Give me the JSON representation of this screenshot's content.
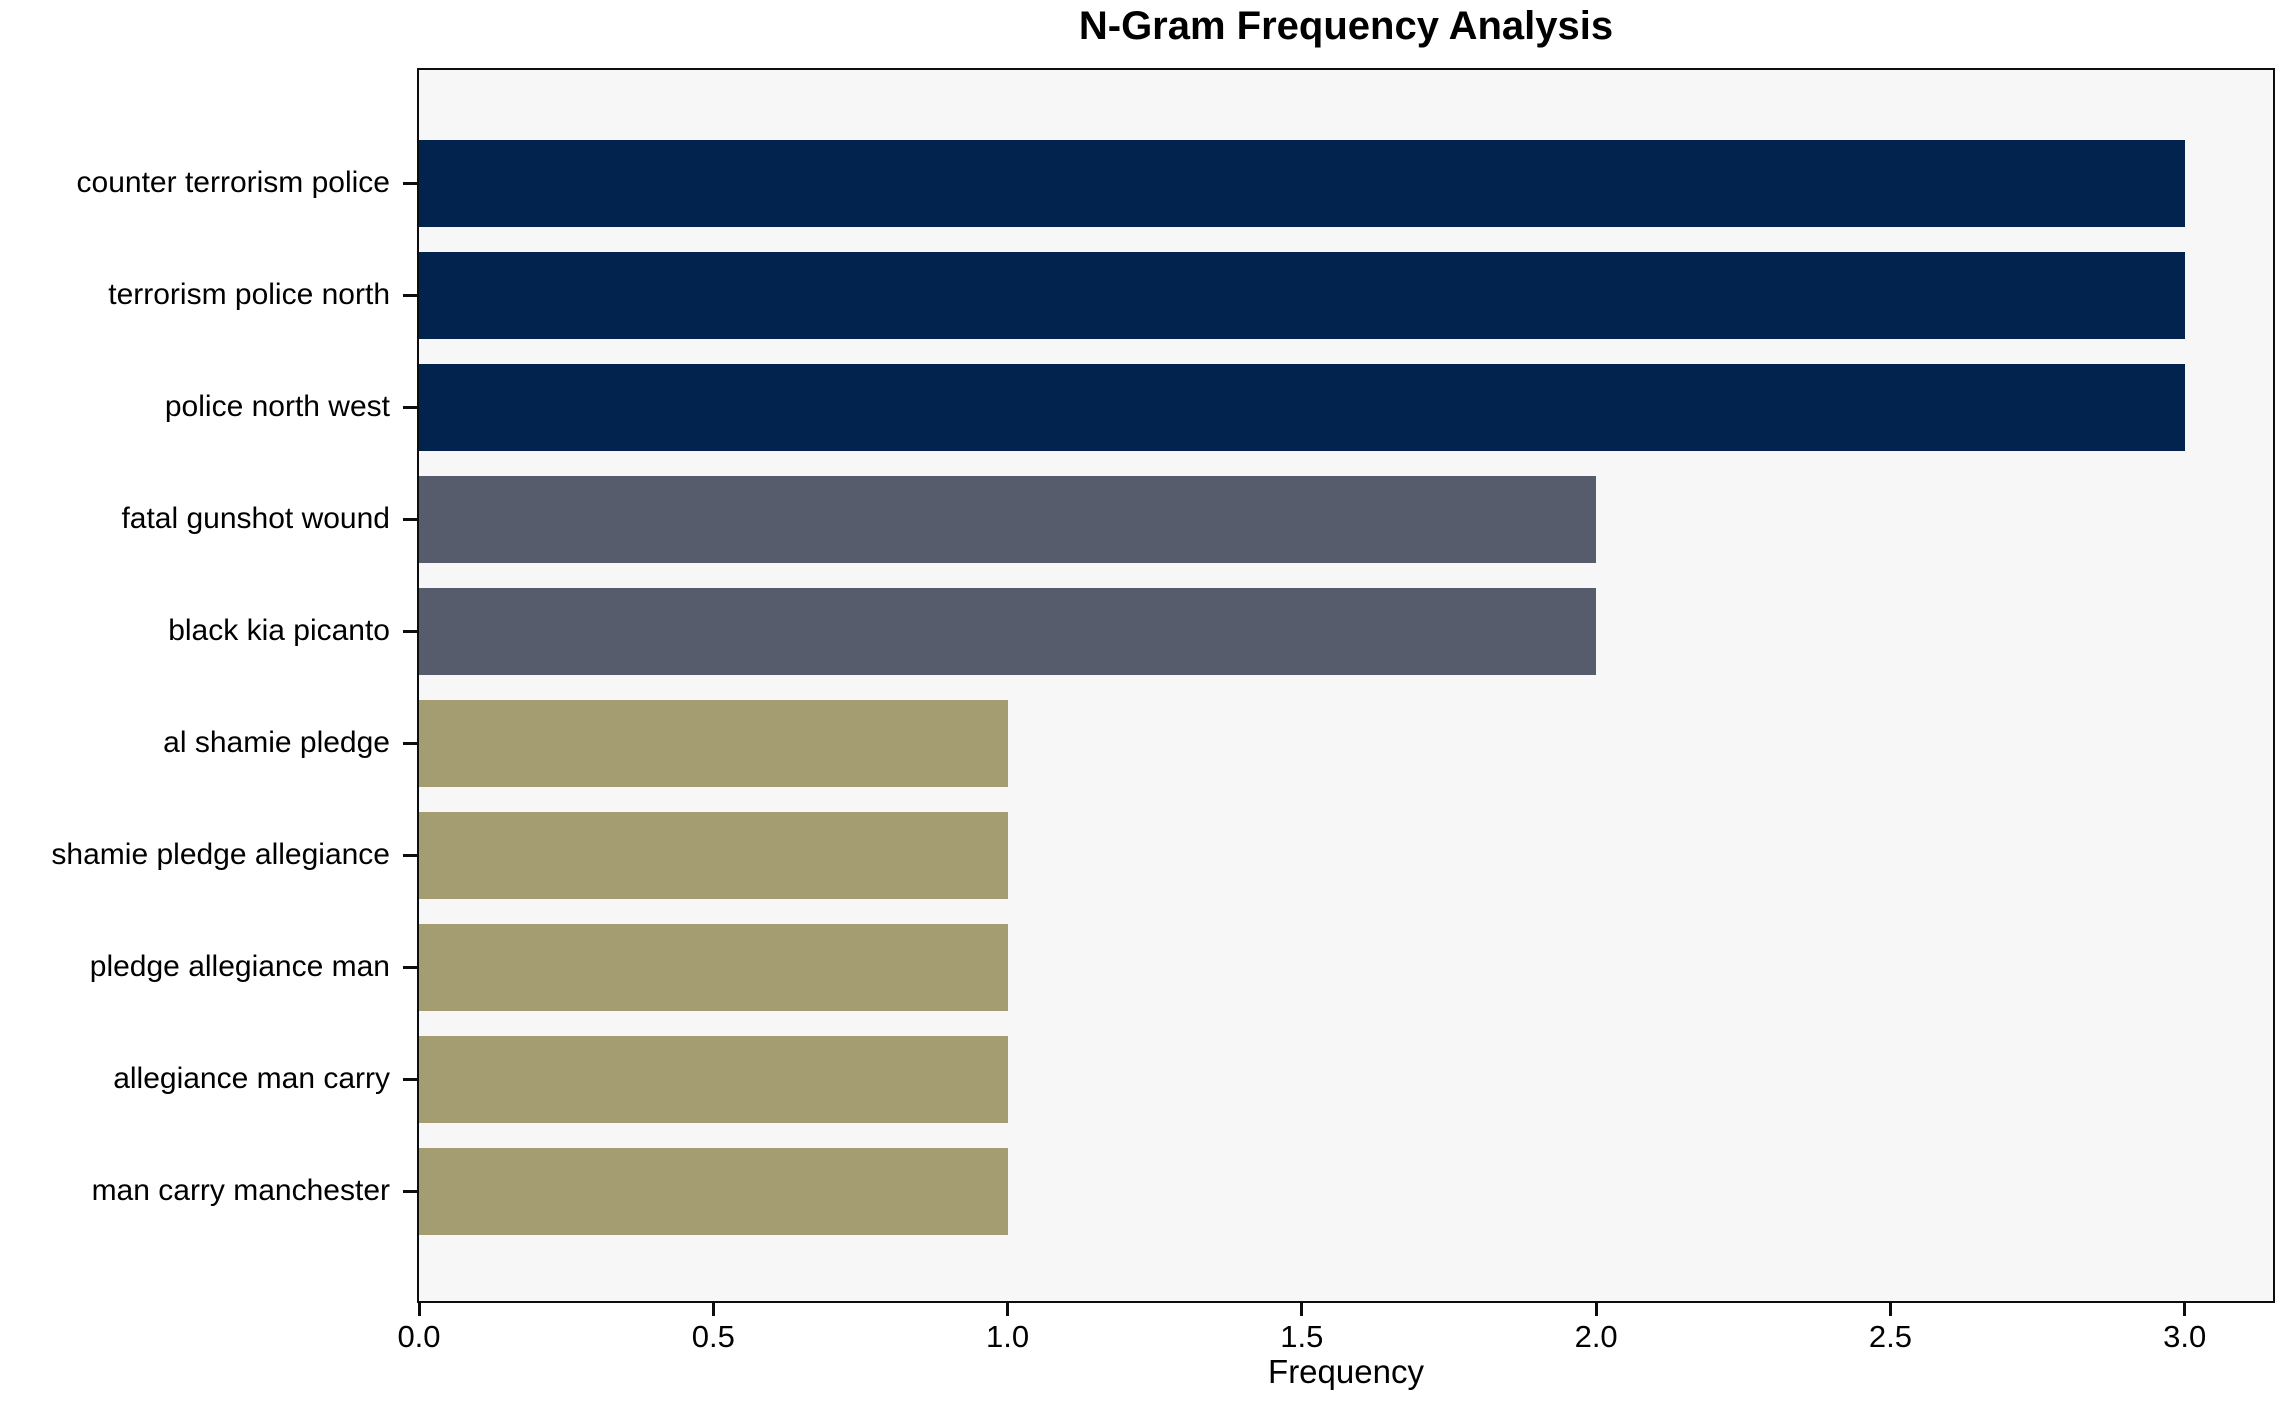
{
  "chart_data": {
    "type": "bar",
    "orientation": "horizontal",
    "title": "N-Gram Frequency Analysis",
    "xlabel": "Frequency",
    "ylabel": "",
    "grid": false,
    "legend_position": "none",
    "xlim": [
      0,
      3.15
    ],
    "xticks": [
      0.0,
      0.5,
      1.0,
      1.5,
      2.0,
      2.5,
      3.0
    ],
    "xtick_labels": [
      "0.0",
      "0.5",
      "1.0",
      "1.5",
      "2.0",
      "2.5",
      "3.0"
    ],
    "categories": [
      "counter terrorism police",
      "terrorism police north",
      "police north west",
      "fatal gunshot wound",
      "black kia picanto",
      "al shamie pledge",
      "shamie pledge allegiance",
      "pledge allegiance man",
      "allegiance man carry",
      "man carry manchester"
    ],
    "values": [
      3,
      3,
      3,
      2,
      2,
      1,
      1,
      1,
      1,
      1
    ],
    "bar_colors": [
      "#02234d",
      "#02234d",
      "#02234d",
      "#565c6b",
      "#565c6b",
      "#a59d72",
      "#a59d72",
      "#a59d72",
      "#a59d72",
      "#a59d72"
    ],
    "colors": {
      "value_3": "#02234d",
      "value_2": "#565c6b",
      "value_1": "#a59d72",
      "plot_background": "#f7f7f8",
      "figure_background": "#ffffff",
      "spine": "#0d0d0d",
      "text": "#000000"
    }
  }
}
